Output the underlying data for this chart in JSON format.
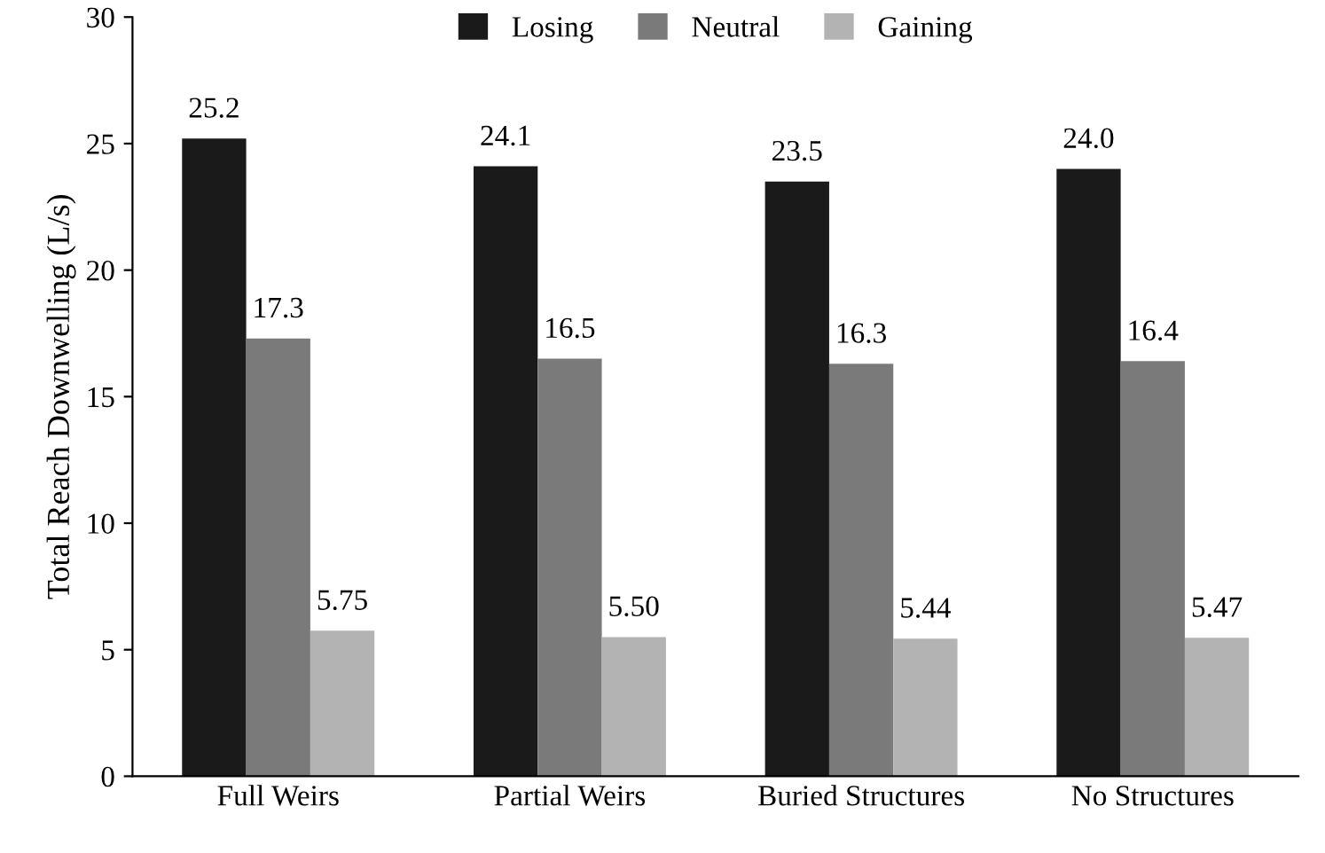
{
  "chart_data": {
    "type": "bar",
    "ylabel": "Total Reach Downwelling (L/s)",
    "categories": [
      "Full Weirs",
      "Partial Weirs",
      "Buried Structures",
      "No Structures"
    ],
    "series": [
      {
        "name": "Losing",
        "color": "#1a1a1a",
        "values": [
          25.2,
          24.1,
          23.5,
          24.0
        ],
        "value_labels": [
          "25.2",
          "24.1",
          "23.5",
          "24.0"
        ]
      },
      {
        "name": "Neutral",
        "color": "#7a7a7a",
        "values": [
          17.3,
          16.5,
          16.3,
          16.4
        ],
        "value_labels": [
          "17.3",
          "16.5",
          "16.3",
          "16.4"
        ]
      },
      {
        "name": "Gaining",
        "color": "#b3b3b3",
        "values": [
          5.75,
          5.5,
          5.44,
          5.47
        ],
        "value_labels": [
          "5.75",
          "5.50",
          "5.44",
          "5.47"
        ]
      }
    ],
    "ylim": [
      0,
      30
    ],
    "yticks": [
      0,
      5,
      10,
      15,
      20,
      25,
      30
    ],
    "grid": false,
    "legend": "top"
  }
}
